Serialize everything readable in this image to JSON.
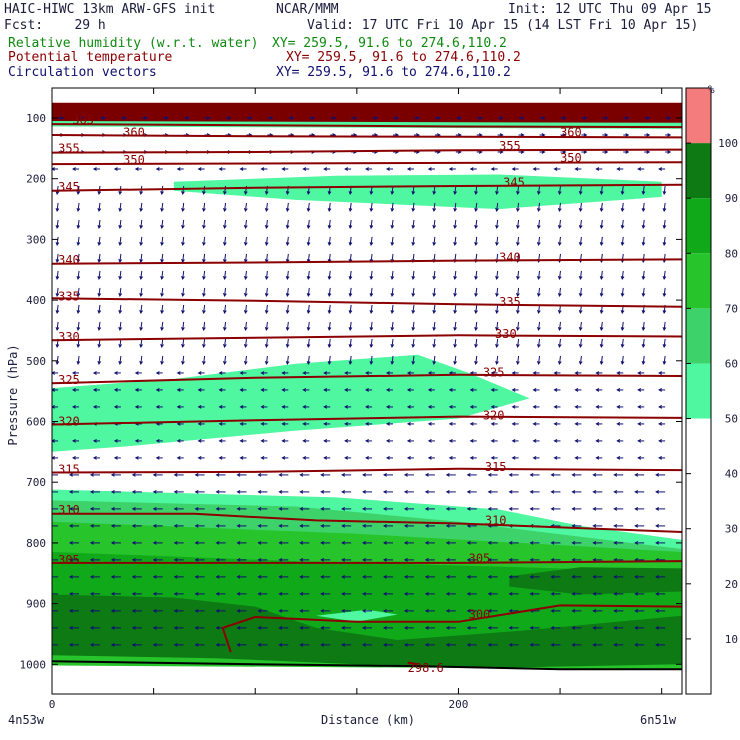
{
  "header": {
    "model": "HAIC-HIWC 13km ARW-GFS init",
    "org": "NCAR/MMM",
    "init": "Init: 12 UTC Thu 09 Apr 15",
    "fcst": "Fcst:    29 h",
    "valid": "Valid: 17 UTC Fri 10 Apr 15 (14 LST Fri 10 Apr 15)",
    "rh_label": "Relative humidity (w.r.t. water)",
    "rh_xy": "XY= 259.5, 91.6 to 274.6,110.2",
    "theta_label": "Potential temperature",
    "theta_xy": "XY= 259.5, 91.6 to 274.6,110.2",
    "vec_label": "Circulation vectors",
    "vec_xy": "XY= 259.5, 91.6 to 274.6,110.2"
  },
  "colors": {
    "rh_50": "#4ff7a0",
    "rh_60": "#3ed36a",
    "rh_70": "#27c42b",
    "rh_80": "#10a91a",
    "rh_90": "#0e7a14",
    "rh_100": "#f47c7c",
    "terrain_top": "#7a0000",
    "theta": "#8b0000",
    "vectors": "#101070"
  },
  "chart_data": {
    "type": "heatmap",
    "title": "HAIC-HIWC 13km ARW-GFS init",
    "xlabel": "Distance (km)",
    "ylabel": "Pressure (hPa)",
    "xlim": [
      0,
      310
    ],
    "ylim_hpa": [
      1050,
      75
    ],
    "x_ticks": [
      {
        "value": 0,
        "label": "0"
      },
      {
        "value": 200,
        "label": "200"
      }
    ],
    "x_end_labels": {
      "left": "4n53w",
      "right": "6n51w"
    },
    "y_ticks": [
      100,
      200,
      300,
      400,
      500,
      600,
      700,
      800,
      900,
      1000
    ],
    "colorbar": {
      "unit": "%",
      "levels": [
        10,
        20,
        30,
        40,
        50,
        60,
        70,
        80,
        90,
        100
      ],
      "bands": [
        {
          "from": 0,
          "to": 50,
          "color": "#ffffff"
        },
        {
          "from": 50,
          "to": 60,
          "color": "#4ff7a0"
        },
        {
          "from": 60,
          "to": 70,
          "color": "#3ed36a"
        },
        {
          "from": 70,
          "to": 80,
          "color": "#27c42b"
        },
        {
          "from": 80,
          "to": 90,
          "color": "#10a91a"
        },
        {
          "from": 90,
          "to": 100,
          "color": "#0e7a14"
        },
        {
          "from": 100,
          "to": 110,
          "color": "#f47c7c"
        }
      ]
    },
    "theta_contours": [
      {
        "label": "365",
        "points": [
          [
            0,
            110
          ],
          [
            100,
            112
          ],
          [
            200,
            114
          ],
          [
            310,
            115
          ]
        ],
        "labels_at": [
          [
            10,
            103
          ]
        ]
      },
      {
        "label": "360",
        "points": [
          [
            0,
            128
          ],
          [
            100,
            130
          ],
          [
            200,
            131
          ],
          [
            310,
            132
          ]
        ],
        "labels_at": [
          [
            35,
            124
          ],
          [
            250,
            124
          ]
        ]
      },
      {
        "label": "355",
        "points": [
          [
            0,
            157
          ],
          [
            100,
            156
          ],
          [
            200,
            153
          ],
          [
            310,
            152
          ]
        ],
        "labels_at": [
          [
            3,
            150
          ],
          [
            220,
            146
          ]
        ]
      },
      {
        "label": "350",
        "points": [
          [
            0,
            176
          ],
          [
            100,
            175
          ],
          [
            200,
            174
          ],
          [
            310,
            173
          ]
        ],
        "labels_at": [
          [
            35,
            169
          ],
          [
            250,
            166
          ]
        ]
      },
      {
        "label": "345",
        "points": [
          [
            0,
            220
          ],
          [
            100,
            215
          ],
          [
            200,
            212
          ],
          [
            310,
            210
          ]
        ],
        "labels_at": [
          [
            3,
            214
          ],
          [
            222,
            206
          ]
        ]
      },
      {
        "label": "340",
        "points": [
          [
            0,
            340
          ],
          [
            100,
            338
          ],
          [
            200,
            335
          ],
          [
            310,
            333
          ]
        ],
        "labels_at": [
          [
            3,
            334
          ],
          [
            220,
            330
          ]
        ]
      },
      {
        "label": "335",
        "points": [
          [
            0,
            397
          ],
          [
            100,
            401
          ],
          [
            200,
            407
          ],
          [
            310,
            411
          ]
        ],
        "labels_at": [
          [
            3,
            394
          ],
          [
            220,
            403
          ]
        ]
      },
      {
        "label": "330",
        "points": [
          [
            0,
            466
          ],
          [
            100,
            462
          ],
          [
            200,
            458
          ],
          [
            310,
            460
          ]
        ],
        "labels_at": [
          [
            3,
            461
          ],
          [
            218,
            456
          ]
        ]
      },
      {
        "label": "325",
        "points": [
          [
            0,
            537
          ],
          [
            100,
            528
          ],
          [
            200,
            523
          ],
          [
            310,
            525
          ]
        ],
        "labels_at": [
          [
            3,
            532
          ],
          [
            212,
            519
          ]
        ]
      },
      {
        "label": "320",
        "points": [
          [
            0,
            605
          ],
          [
            100,
            598
          ],
          [
            200,
            592
          ],
          [
            310,
            594
          ]
        ],
        "labels_at": [
          [
            3,
            600
          ],
          [
            212,
            590
          ]
        ]
      },
      {
        "label": "315",
        "points": [
          [
            0,
            684
          ],
          [
            100,
            683
          ],
          [
            200,
            678
          ],
          [
            310,
            680
          ]
        ],
        "labels_at": [
          [
            3,
            679
          ],
          [
            213,
            675
          ]
        ]
      },
      {
        "label": "310",
        "points": [
          [
            0,
            752
          ],
          [
            70,
            752
          ],
          [
            130,
            763
          ],
          [
            200,
            768
          ],
          [
            310,
            782
          ]
        ],
        "labels_at": [
          [
            3,
            746
          ],
          [
            213,
            763
          ]
        ]
      },
      {
        "label": "305",
        "points": [
          [
            0,
            833
          ],
          [
            100,
            833
          ],
          [
            200,
            833
          ],
          [
            310,
            830
          ]
        ],
        "labels_at": [
          [
            3,
            828
          ],
          [
            205,
            826
          ]
        ]
      },
      {
        "label": "300",
        "points": [
          [
            88,
            980
          ],
          [
            84,
            940
          ],
          [
            100,
            922
          ],
          [
            150,
            930
          ],
          [
            200,
            930
          ],
          [
            250,
            903
          ],
          [
            310,
            905
          ]
        ],
        "labels_at": [
          [
            205,
            918
          ]
        ]
      },
      {
        "label": "298.6",
        "points": [
          [
            175,
            997
          ],
          [
            180,
            1000
          ]
        ],
        "labels_at": [
          [
            175,
            1006
          ]
        ]
      }
    ]
  }
}
